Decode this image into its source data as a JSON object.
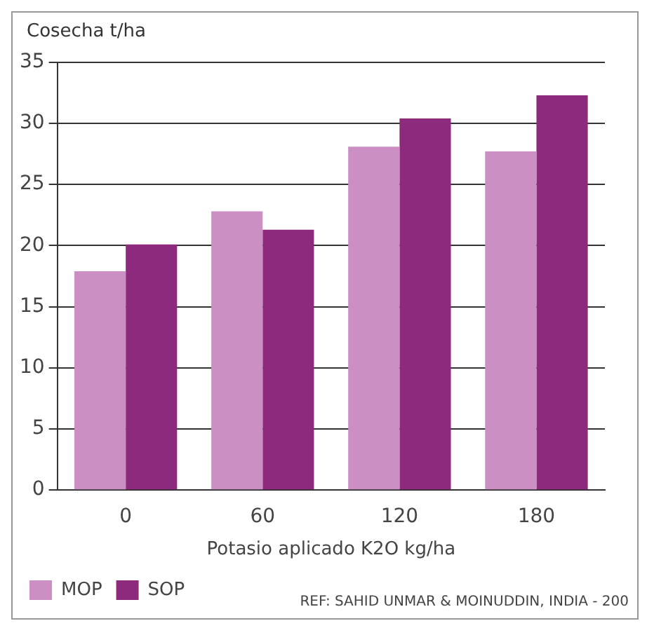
{
  "chart_data": {
    "type": "bar",
    "ylabel": "Cosecha t/ha",
    "xlabel": "Potasio aplicado K2O kg/ha",
    "categories": [
      "0",
      "60",
      "120",
      "180"
    ],
    "series": [
      {
        "name": "MOP",
        "color": "#cc8fc4",
        "values": [
          17.9,
          22.8,
          28.1,
          27.7
        ]
      },
      {
        "name": "SOP",
        "color": "#8e2a7e",
        "values": [
          20.1,
          21.3,
          30.4,
          32.3
        ]
      }
    ],
    "ylim": [
      0,
      35
    ],
    "yticks": [
      0,
      5,
      10,
      15,
      20,
      25,
      30,
      35
    ],
    "grid": "y",
    "legend": "bottom left",
    "annotations": [
      "REF: SAHID UNMAR & MOINUDDIN, INDIA - 200"
    ]
  }
}
